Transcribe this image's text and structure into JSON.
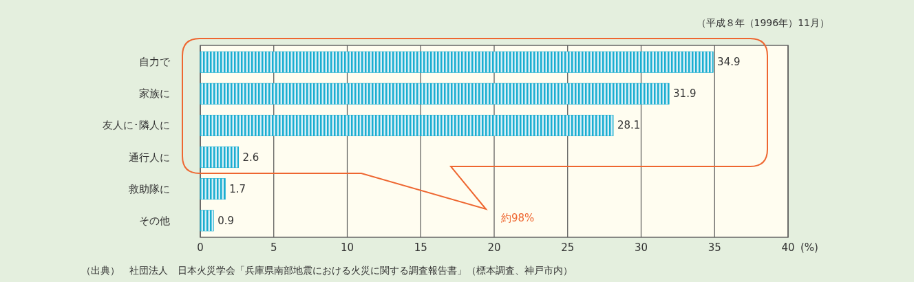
{
  "chart_data": {
    "type": "bar",
    "orientation": "horizontal",
    "subtitle": "（平成８年（1996年）11月）",
    "xlabel": "(%)",
    "categories": [
      "自力で",
      "家族に",
      "友人に･隣人に",
      "通行人に",
      "救助隊に",
      "その他"
    ],
    "values": [
      34.9,
      31.9,
      28.1,
      2.6,
      1.7,
      0.9
    ],
    "color": "#1aaed0",
    "xlim": [
      0,
      40
    ],
    "xticks": [
      0,
      5,
      10,
      15,
      20,
      25,
      30,
      35,
      40
    ],
    "grid": "x",
    "data_labels": true,
    "annotations": [
      "約98%",
      "（出典）　社団法人　日本火災学会「兵庫県南部地震における火災に関する調査報告書」（標本調査、神戸市内）"
    ]
  }
}
